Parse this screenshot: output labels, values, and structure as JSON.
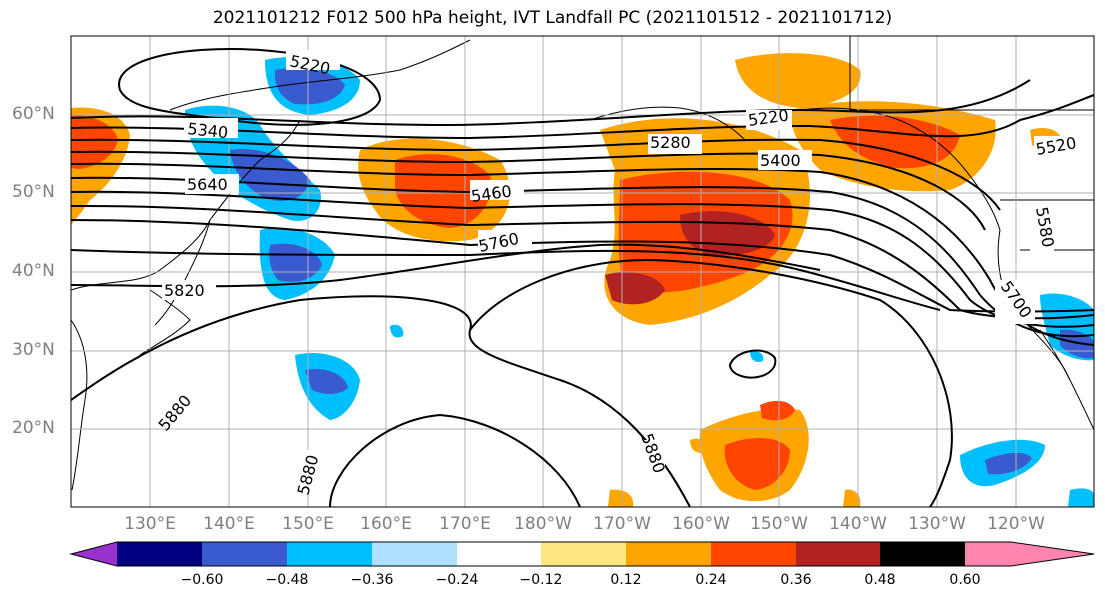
{
  "title": "2021101212 F012 500 hPa height, IVT Landfall PC (2021101512 - 2021101712)",
  "lat_labels": [
    "60°N",
    "50°N",
    "40°N",
    "30°N",
    "20°N"
  ],
  "lon_labels": [
    "130°E",
    "140°E",
    "150°E",
    "160°E",
    "170°E",
    "180°W",
    "170°W",
    "160°W",
    "150°W",
    "140°W",
    "130°W",
    "120°W"
  ],
  "contour_labels": [
    "5220",
    "5340",
    "5640",
    "5460",
    "5760",
    "5820",
    "5880",
    "5880",
    "5880",
    "5280",
    "5220",
    "5400",
    "5520",
    "5580",
    "5700"
  ],
  "colorbar": {
    "ticks": [
      "−0.60",
      "−0.48",
      "−0.36",
      "−0.24",
      "−0.12",
      "0.12",
      "0.24",
      "0.36",
      "0.48",
      "0.60"
    ],
    "colors": [
      "#9932CC",
      "#000080",
      "#3A5BCF",
      "#00BFFF",
      "#ADDFFF",
      "#FFFFFF",
      "#FFE680",
      "#FFA500",
      "#FF4500",
      "#B22222",
      "#FF85B0"
    ]
  },
  "palette": {
    "land": "#000000",
    "grid": "#b0b0b0",
    "contour": "#000000"
  }
}
